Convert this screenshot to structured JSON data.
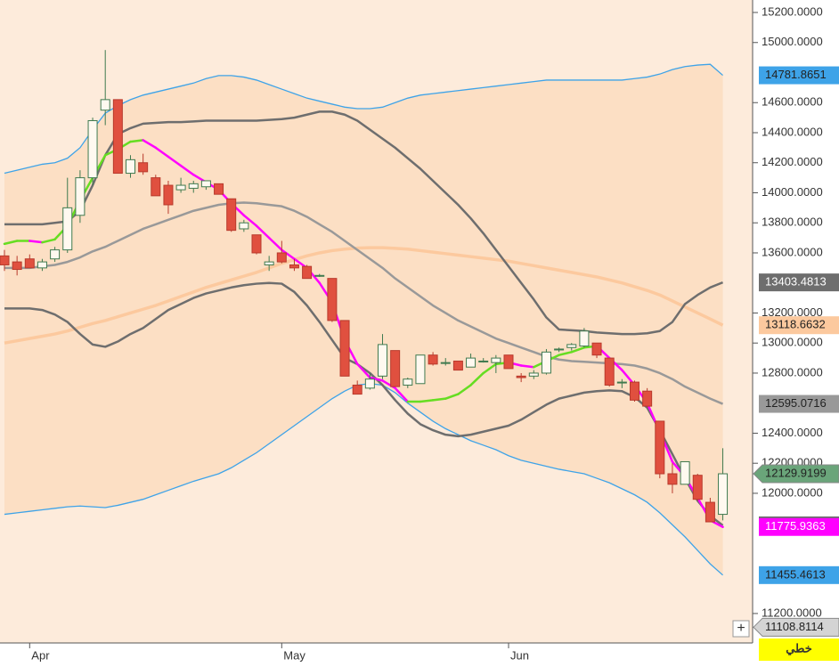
{
  "chart_data": {
    "type": "candlestick",
    "categories": [
      null,
      null,
      "Apr",
      null,
      null,
      null,
      null,
      null,
      null,
      null,
      null,
      null,
      null,
      null,
      null,
      null,
      null,
      null,
      null,
      null,
      null,
      null,
      "May",
      null,
      null,
      null,
      null,
      null,
      null,
      null,
      null,
      null,
      null,
      null,
      null,
      null,
      null,
      null,
      null,
      null,
      "Jun",
      null,
      null,
      null,
      null,
      null,
      null,
      null,
      null,
      null,
      null,
      null,
      null,
      null,
      null,
      null,
      null,
      null
    ],
    "open": [
      13580,
      13540,
      13560,
      13500,
      13560,
      13620,
      13850,
      14100,
      14550,
      14620,
      14130,
      14200,
      14100,
      14050,
      14020,
      14030,
      14040,
      14060,
      13960,
      13760,
      13720,
      13520,
      13600,
      13520,
      13510,
      13450,
      13430,
      13150,
      12720,
      12700,
      12780,
      12950,
      12720,
      12730,
      12920,
      12870,
      12880,
      12840,
      12880,
      12870,
      12920,
      12780,
      12780,
      12800,
      12960,
      12970,
      12980,
      13000,
      12900,
      12740,
      12740,
      12680,
      12480,
      12130,
      12060,
      12120,
      11940,
      11860
    ],
    "high": [
      13620,
      13580,
      13590,
      13560,
      13640,
      14100,
      14150,
      14500,
      14950,
      14620,
      14250,
      14260,
      14120,
      14080,
      14100,
      14080,
      14080,
      14060,
      13960,
      13820,
      13720,
      13580,
      13680,
      13560,
      13520,
      13460,
      13430,
      13150,
      12750,
      12800,
      13060,
      12950,
      12770,
      12920,
      12940,
      12900,
      12880,
      12930,
      12900,
      12920,
      12920,
      12800,
      12820,
      12960,
      12970,
      13000,
      13100,
      13000,
      12900,
      12760,
      12750,
      12700,
      12480,
      12200,
      12210,
      12130,
      11970,
      12300
    ],
    "low": [
      13480,
      13450,
      13500,
      13480,
      13540,
      13600,
      13800,
      14050,
      14450,
      14130,
      14100,
      14120,
      13980,
      13860,
      14000,
      14000,
      14020,
      13990,
      13740,
      13740,
      13590,
      13480,
      13530,
      13480,
      13430,
      13440,
      13140,
      12780,
      12660,
      12690,
      12760,
      12710,
      12700,
      12730,
      12850,
      12850,
      12820,
      12840,
      12870,
      12800,
      12830,
      12740,
      12760,
      12790,
      12940,
      12950,
      12970,
      12900,
      12710,
      12700,
      12610,
      12570,
      12100,
      12000,
      12060,
      11950,
      11810,
      11820
    ],
    "close": [
      13520,
      13490,
      13500,
      13540,
      13620,
      13900,
      14100,
      14480,
      14620,
      14130,
      14220,
      14140,
      13980,
      13920,
      14050,
      14060,
      14080,
      13990,
      13750,
      13800,
      13600,
      13540,
      13540,
      13500,
      13430,
      13450,
      13150,
      12780,
      12660,
      12760,
      12990,
      12710,
      12760,
      12920,
      12860,
      12870,
      12820,
      12900,
      12880,
      12900,
      12830,
      12770,
      12800,
      12940,
      12960,
      12990,
      13080,
      12920,
      12720,
      12740,
      12620,
      12580,
      12130,
      12060,
      12210,
      11960,
      11810,
      12129.9199
    ],
    "up_color": "#fff9f0",
    "up_stroke": "#3f7a4f",
    "down_color": "#e0503f",
    "down_stroke": "#b83a2c",
    "current_color": "#6aa57a",
    "ylim": [
      11004,
      15283
    ],
    "yticks": [
      {
        "value": 15200,
        "label": "15200.0000"
      },
      {
        "value": 15000,
        "label": "15000.0000"
      },
      {
        "value": 14600,
        "label": "14600.0000"
      },
      {
        "value": 14400,
        "label": "14400.0000"
      },
      {
        "value": 14200,
        "label": "14200.0000"
      },
      {
        "value": 14000,
        "label": "14000.0000"
      },
      {
        "value": 13800,
        "label": "13800.0000"
      },
      {
        "value": 13600,
        "label": "13600.0000"
      },
      {
        "value": 13200,
        "label": "13200.0000"
      },
      {
        "value": 13000,
        "label": "13000.0000"
      },
      {
        "value": 12800,
        "label": "12800.0000"
      },
      {
        "value": 12400,
        "label": "12400.0000"
      },
      {
        "value": 12200,
        "label": "12200.0000"
      },
      {
        "value": 12000,
        "label": "12000.0000"
      },
      {
        "value": 11200,
        "label": "11200.0000"
      }
    ],
    "background": "#fdebdb",
    "bands": {
      "fill": "#fcdfc4",
      "upper": {
        "color": "#3ea3e8",
        "values": [
          14130,
          14150,
          14170,
          14190,
          14200,
          14230,
          14300,
          14420,
          14530,
          14580,
          14620,
          14650,
          14670,
          14690,
          14710,
          14730,
          14760,
          14780,
          14780,
          14770,
          14750,
          14720,
          14690,
          14660,
          14630,
          14610,
          14590,
          14570,
          14560,
          14560,
          14570,
          14600,
          14630,
          14650,
          14660,
          14670,
          14680,
          14690,
          14700,
          14710,
          14720,
          14730,
          14740,
          14750,
          14750,
          14750,
          14750,
          14750,
          14750,
          14750,
          14760,
          14770,
          14790,
          14820,
          14840,
          14850,
          14855,
          14781.8651
        ]
      },
      "lower": {
        "color": "#3ea3e8",
        "values": [
          11860,
          11870,
          11880,
          11890,
          11900,
          11910,
          11915,
          11910,
          11905,
          11920,
          11940,
          11960,
          11990,
          12020,
          12050,
          12080,
          12105,
          12130,
          12170,
          12220,
          12270,
          12330,
          12390,
          12450,
          12510,
          12570,
          12630,
          12680,
          12720,
          12730,
          12720,
          12670,
          12600,
          12540,
          12480,
          12430,
          12390,
          12350,
          12320,
          12290,
          12250,
          12220,
          12200,
          12180,
          12160,
          12145,
          12130,
          12100,
          12070,
          12030,
          11990,
          11940,
          11870,
          11790,
          11710,
          11620,
          11530,
          11455.4613
        ]
      }
    },
    "lines": [
      {
        "color": "#fcc99e",
        "width": 3.5,
        "values": [
          13000,
          13015,
          13030,
          13045,
          13060,
          13080,
          13105,
          13130,
          13150,
          13175,
          13200,
          13225,
          13250,
          13280,
          13310,
          13340,
          13370,
          13395,
          13420,
          13445,
          13470,
          13500,
          13530,
          13555,
          13580,
          13600,
          13615,
          13625,
          13632,
          13635,
          13635,
          13630,
          13625,
          13615,
          13605,
          13595,
          13585,
          13575,
          13565,
          13555,
          13545,
          13530,
          13515,
          13500,
          13485,
          13470,
          13455,
          13440,
          13420,
          13400,
          13375,
          13350,
          13320,
          13280,
          13240,
          13200,
          13160,
          13118.6632
        ]
      },
      {
        "color": "#6e6e6e",
        "width": 2.5,
        "values": [
          13790,
          13790,
          13790,
          13790,
          13800,
          13810,
          13880,
          14050,
          14250,
          14390,
          14430,
          14460,
          14465,
          14470,
          14470,
          14475,
          14480,
          14480,
          14480,
          14480,
          14480,
          14485,
          14490,
          14500,
          14520,
          14540,
          14540,
          14520,
          14480,
          14420,
          14360,
          14300,
          14230,
          14160,
          14080,
          14000,
          13920,
          13830,
          13730,
          13620,
          13510,
          13400,
          13290,
          13170,
          13090,
          13085,
          13080,
          13070,
          13065,
          13060,
          13060,
          13065,
          13080,
          13140,
          13260,
          13320,
          13370,
          13403.4813
        ]
      },
      {
        "color": "#999999",
        "width": 2.5,
        "values": [
          13500,
          13500,
          13500,
          13510,
          13520,
          13540,
          13570,
          13610,
          13640,
          13680,
          13720,
          13760,
          13790,
          13820,
          13850,
          13880,
          13900,
          13920,
          13930,
          13935,
          13930,
          13920,
          13910,
          13880,
          13840,
          13790,
          13740,
          13680,
          13620,
          13560,
          13500,
          13430,
          13370,
          13310,
          13250,
          13200,
          13150,
          13110,
          13070,
          13030,
          13000,
          12970,
          12940,
          12910,
          12890,
          12880,
          12875,
          12870,
          12865,
          12860,
          12850,
          12830,
          12800,
          12760,
          12710,
          12670,
          12630,
          12595.0716
        ]
      },
      {
        "color": "#6e6e6e",
        "width": 2.5,
        "values": [
          13230,
          13230,
          13230,
          13220,
          13190,
          13140,
          13060,
          12990,
          12975,
          13010,
          13060,
          13100,
          13160,
          13220,
          13260,
          13300,
          13330,
          13350,
          13370,
          13385,
          13395,
          13400,
          13395,
          13340,
          13250,
          13140,
          13020,
          12900,
          12860,
          12800,
          12720,
          12620,
          12530,
          12460,
          12420,
          12390,
          12380,
          12390,
          12410,
          12430,
          12450,
          12490,
          12540,
          12590,
          12630,
          12650,
          12670,
          12680,
          12685,
          12680,
          12640,
          12570,
          12420,
          12260,
          12100,
          11950,
          11850,
          11786.6619
        ]
      },
      {
        "color": "#ff00ff",
        "up_color": "#66dd22",
        "width": 2.5,
        "values": [
          13660,
          13680,
          13680,
          13670,
          13690,
          13780,
          13950,
          14100,
          14250,
          14290,
          14340,
          14350,
          14300,
          14240,
          14180,
          14120,
          14070,
          14020,
          13930,
          13850,
          13780,
          13700,
          13620,
          13560,
          13500,
          13400,
          13270,
          13020,
          12860,
          12770,
          12750,
          12700,
          12610,
          12610,
          12620,
          12630,
          12660,
          12720,
          12800,
          12860,
          12870,
          12850,
          12840,
          12880,
          12920,
          12940,
          12970,
          12980,
          12900,
          12820,
          12720,
          12600,
          12410,
          12210,
          12110,
          11970,
          11820,
          11775.9363
        ]
      }
    ],
    "extra_tags": [
      {
        "value": 11108.8114,
        "color": "#d4d4d4"
      }
    ],
    "plus_button": "+",
    "chart_type_label": "خطي"
  }
}
